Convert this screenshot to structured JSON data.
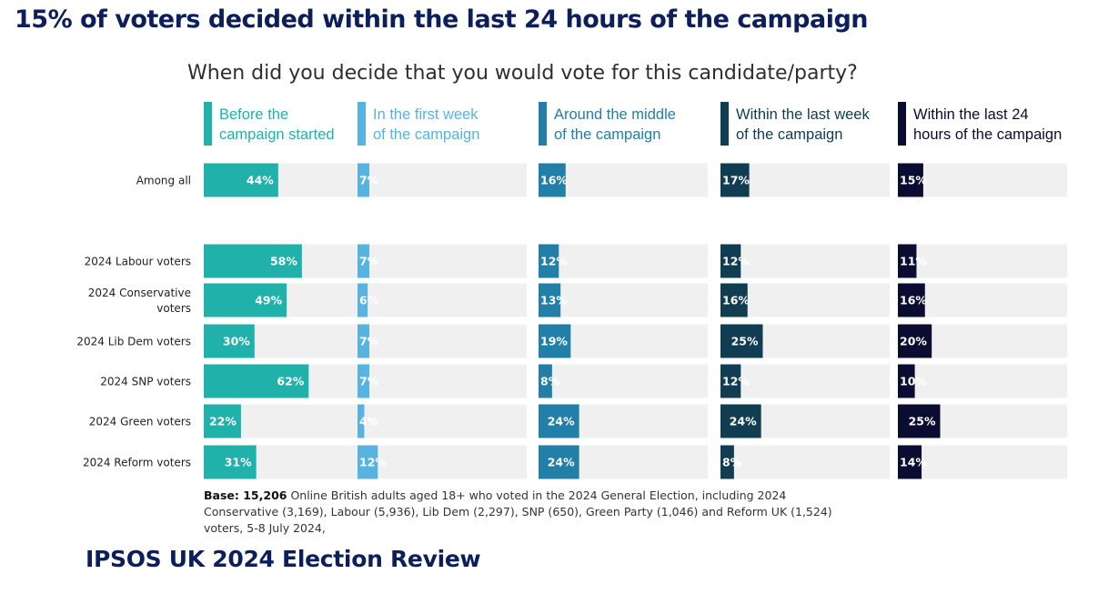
{
  "headline": "15% of voters decided within the last 24 hours of the campaign",
  "question": "When did you decide that you would vote for this candidate/party?",
  "base_note": {
    "label": "Base: 15,206",
    "text": "Online British adults aged 18+ who voted in the 2024 General Election, including 2024 Conservative (3,169), Labour (5,936), Lib Dem (2,297), SNP (650), Green Party (1,046) and Reform UK (1,524) voters, 5-8 July 2024,"
  },
  "footer_title": "IPSOS UK 2024 Election Review",
  "colors": {
    "before": "#20b2aa",
    "first_week": "#57b4e0",
    "middle": "#227fa8",
    "last_week": "#103d52",
    "last_24h": "#0b0c32",
    "track": "#f0f0f0"
  },
  "chart_data": {
    "type": "bar",
    "title": "When did you decide that you would vote for this candidate/party?",
    "categories": [
      "Among all",
      "2024 Labour voters",
      "2024 Conservative voters",
      "2024 Lib Dem voters",
      "2024 SNP voters",
      "2024 Green voters",
      "2024 Reform voters"
    ],
    "category_lines": [
      [
        "Among all"
      ],
      [
        "2024 Labour voters"
      ],
      [
        "2024 Conservative",
        "voters"
      ],
      [
        "2024 Lib Dem voters"
      ],
      [
        "2024 SNP voters"
      ],
      [
        "2024 Green voters"
      ],
      [
        "2024 Reform voters"
      ]
    ],
    "series": [
      {
        "name": "Before the campaign started",
        "name_lines": [
          "Before the",
          "campaign started"
        ],
        "color": "#20b2aa",
        "values": [
          44,
          58,
          49,
          30,
          62,
          22,
          31
        ]
      },
      {
        "name": "In the first week of the campaign",
        "name_lines": [
          "In the first week",
          "of the campaign"
        ],
        "color": "#57b4e0",
        "values": [
          7,
          7,
          6,
          7,
          7,
          4,
          12
        ]
      },
      {
        "name": "Around the middle of the campaign",
        "name_lines": [
          "Around the middle",
          "of the campaign"
        ],
        "color": "#227fa8",
        "values": [
          16,
          12,
          13,
          19,
          8,
          24,
          24
        ]
      },
      {
        "name": "Within the last week of the campaign",
        "name_lines": [
          "Within the last week",
          "of the campaign"
        ],
        "color": "#103d52",
        "values": [
          17,
          12,
          16,
          25,
          12,
          24,
          8
        ]
      },
      {
        "name": "Within the last 24 hours of the campaign",
        "name_lines": [
          "Within the last 24",
          "hours of the campaign"
        ],
        "color": "#0b0c32",
        "values": [
          15,
          11,
          16,
          20,
          10,
          25,
          14
        ]
      }
    ],
    "value_suffix": "%",
    "xlim": [
      0,
      100
    ],
    "grid": false,
    "legend": "top"
  }
}
